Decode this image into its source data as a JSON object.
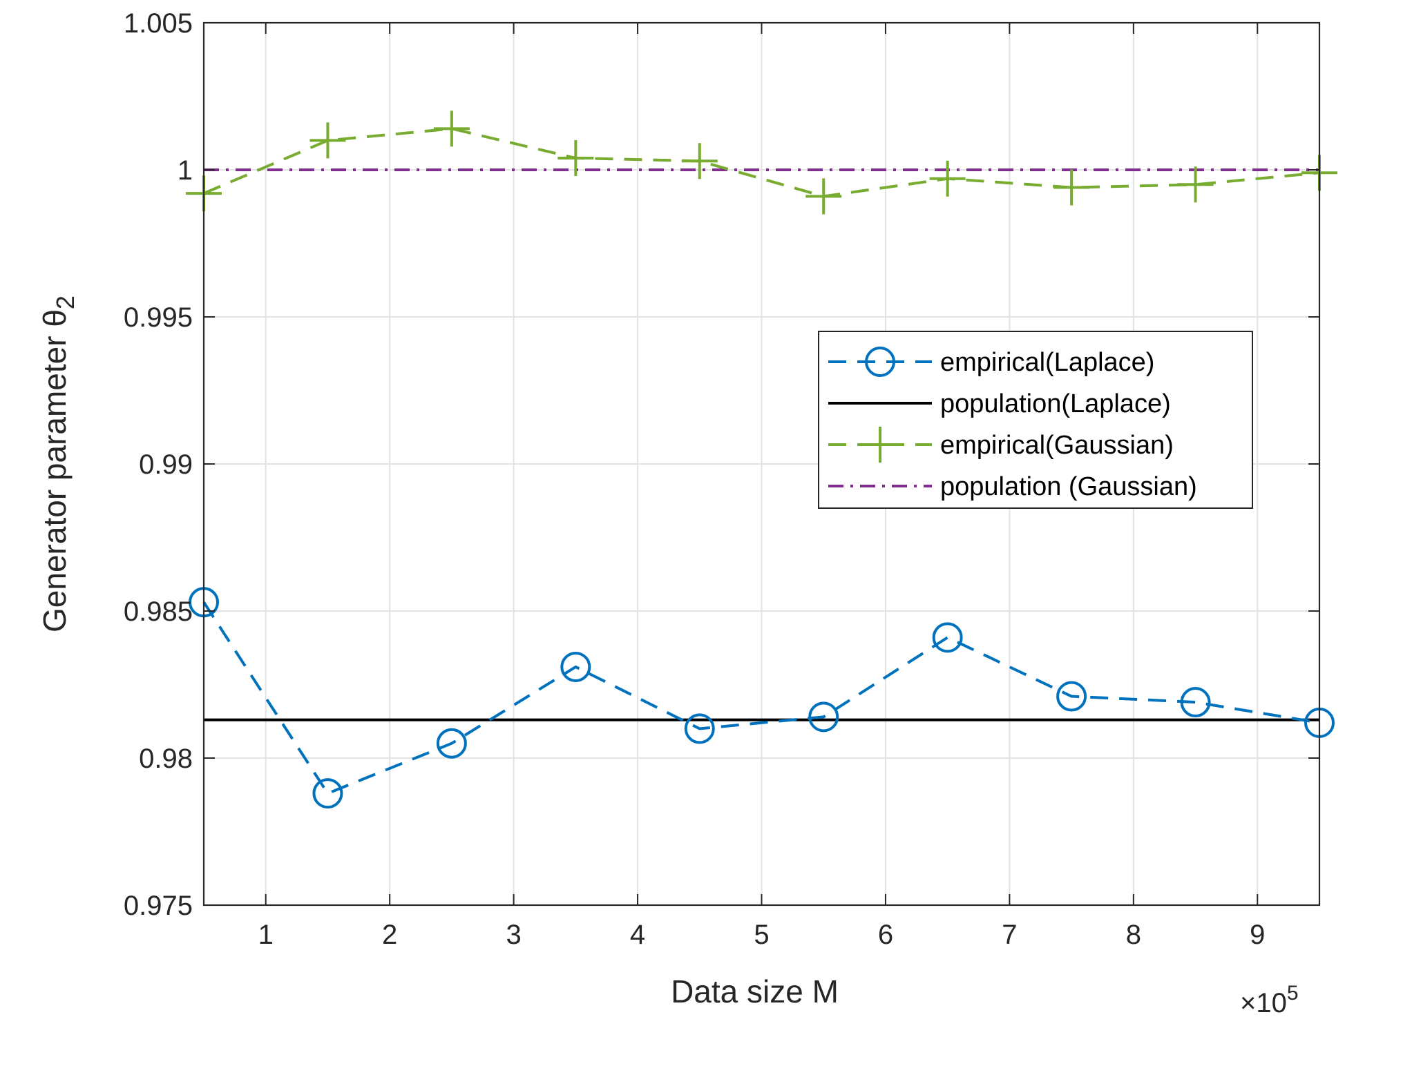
{
  "chart_data": {
    "type": "line",
    "xlabel": "Data size M",
    "ylabel": "Generator parameter θ",
    "ylabel_subscript": "2",
    "x_multiplier": {
      "prefix": "×10",
      "exponent": "5"
    },
    "xlim": [
      0.5,
      9.5
    ],
    "ylim": [
      0.975,
      1.005
    ],
    "xticks": [
      1,
      2,
      3,
      4,
      5,
      6,
      7,
      8,
      9
    ],
    "xtick_labels": [
      "1",
      "2",
      "3",
      "4",
      "5",
      "6",
      "7",
      "8",
      "9"
    ],
    "yticks": [
      0.975,
      0.98,
      0.985,
      0.99,
      0.995,
      1,
      1.005
    ],
    "ytick_labels": [
      "0.975",
      "0.98",
      "0.985",
      "0.99",
      "0.995",
      "1",
      "1.005"
    ],
    "grid": true,
    "legend_position": "top-right (inside plot)",
    "x": [
      0.5,
      1.5,
      2.5,
      3.5,
      4.5,
      5.5,
      6.5,
      7.5,
      8.5,
      9.5
    ],
    "series": [
      {
        "name": "empirical(Laplace)",
        "style": "dashed",
        "marker": "circle",
        "color": "#0072BD",
        "values": [
          0.9853,
          0.9788,
          0.9805,
          0.9831,
          0.981,
          0.9814,
          0.9841,
          0.9821,
          0.9819,
          0.9812
        ]
      },
      {
        "name": "population(Laplace)",
        "style": "solid",
        "marker": "none",
        "color": "#000000",
        "values": [
          0.9813,
          0.9813,
          0.9813,
          0.9813,
          0.9813,
          0.9813,
          0.9813,
          0.9813,
          0.9813,
          0.9813
        ]
      },
      {
        "name": "empirical(Gaussian)",
        "style": "dashed",
        "marker": "plus",
        "color": "#77AC30",
        "values": [
          0.9992,
          1.001,
          1.0014,
          1.0004,
          1.0003,
          0.9991,
          0.9997,
          0.9994,
          0.9995,
          0.9999
        ]
      },
      {
        "name": "population (Gaussian)",
        "style": "dashdot",
        "marker": "none",
        "color": "#7E2F8E",
        "values": [
          1.0,
          1.0,
          1.0,
          1.0,
          1.0,
          1.0,
          1.0,
          1.0,
          1.0,
          1.0
        ]
      }
    ]
  }
}
